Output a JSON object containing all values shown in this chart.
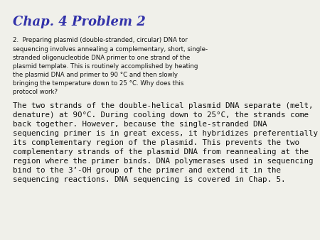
{
  "title": "Chap. 4 Problem 2",
  "title_color": "#3333AA",
  "title_fontsize": 13,
  "background_color": "#f0f0ea",
  "small_text": "2.  Preparing plasmid (double-stranded, circular) DNA tor\nsequencing involves annealing a complementary, short, single-\nstranded oligonucleotide DNA primer to one strand of the\nplasmid template. This is routinely accomplished by heating\nthe plasmid DNA and primer to 90 °C and then slowly\nbringing the temperature down to 25 °C. Why does this\nprotocol work?",
  "small_text_fontsize": 6.2,
  "large_text_line1": "The two strands of the double-helical plasmid DNA separate (melt,",
  "large_text_line2": "denature) at 90°C. During cooling down to 25°C, the strands come",
  "large_text_line3": "back together. However, because the single-stranded DNA",
  "large_text_line4": "sequencing primer is in great excess, it hybridizes preferentially to",
  "large_text_line5": "its complementary region of the plasmid. This prevents the two",
  "large_text_line6": "complementary strands of the plasmid DNA from reannealing at the",
  "large_text_line7": "region where the primer binds. DNA polymerases used in sequencing",
  "large_text_line8": "bind to the 3’-OH group of the primer and extend it in the",
  "large_text_line9": "sequencing reactions. DNA sequencing is covered in Chap. 5.",
  "large_text_fontsize": 7.8,
  "text_color": "#111111"
}
